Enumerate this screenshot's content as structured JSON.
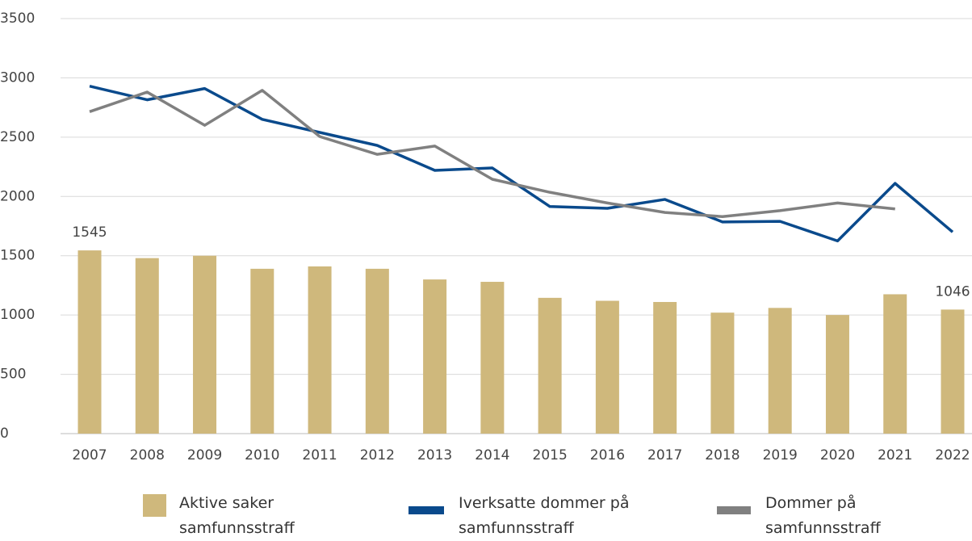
{
  "chart_data": {
    "type": "bar",
    "categories": [
      "2007",
      "2008",
      "2009",
      "2010",
      "2011",
      "2012",
      "2013",
      "2014",
      "2015",
      "2016",
      "2017",
      "2018",
      "2019",
      "2020",
      "2021",
      "2022"
    ],
    "series": [
      {
        "name": "Aktive saker samfunnsstraff",
        "type": "bar",
        "color": "#cfb87c",
        "values": [
          1545,
          1480,
          1500,
          1390,
          1410,
          1390,
          1300,
          1280,
          1145,
          1120,
          1110,
          1020,
          1060,
          1000,
          1175,
          1046
        ],
        "value_labels": [
          "1545",
          null,
          null,
          null,
          null,
          null,
          null,
          null,
          null,
          null,
          null,
          null,
          null,
          null,
          null,
          "1046"
        ]
      },
      {
        "name": "Iverksatte dommer på samfunnsstraff",
        "type": "line",
        "color": "#0a4a8c",
        "values": [
          2930,
          2815,
          2910,
          2650,
          2540,
          2430,
          2220,
          2240,
          1915,
          1900,
          1975,
          1785,
          1790,
          1625,
          2110,
          1700
        ]
      },
      {
        "name": "Dommer på samfunnsstraff",
        "type": "line",
        "color": "#808080",
        "values": [
          2715,
          2880,
          2600,
          2895,
          2505,
          2355,
          2425,
          2145,
          2035,
          1945,
          1865,
          1830,
          1880,
          1945,
          1895,
          null
        ]
      }
    ],
    "ylim": [
      0,
      3500
    ],
    "yticks": [
      0,
      500,
      1000,
      1500,
      2000,
      2500,
      3000,
      3500
    ],
    "grid": true,
    "legend": "bottom"
  }
}
